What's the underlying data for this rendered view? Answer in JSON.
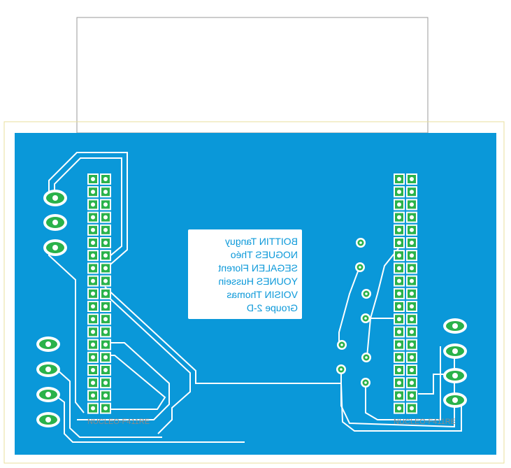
{
  "board": {
    "colors": {
      "copper": "#0a98d9",
      "outline": "#e8df9c",
      "trace_gap": "#ffffff",
      "pad_ring": "#2ab24a",
      "silk": "#7a7a7a"
    }
  },
  "label_block": {
    "lines": [
      "BOITTIN Tanguy",
      "NOGUES Théo",
      "SEGALEN Florent",
      "YOUNES Hussein",
      "VOISIN Thomas",
      "Groupe 2-D"
    ]
  },
  "footprints": {
    "left_name": "NUCLEO-F411RE",
    "right_name": "NUCLEO-F411RE"
  },
  "headers": {
    "rows": 19
  }
}
